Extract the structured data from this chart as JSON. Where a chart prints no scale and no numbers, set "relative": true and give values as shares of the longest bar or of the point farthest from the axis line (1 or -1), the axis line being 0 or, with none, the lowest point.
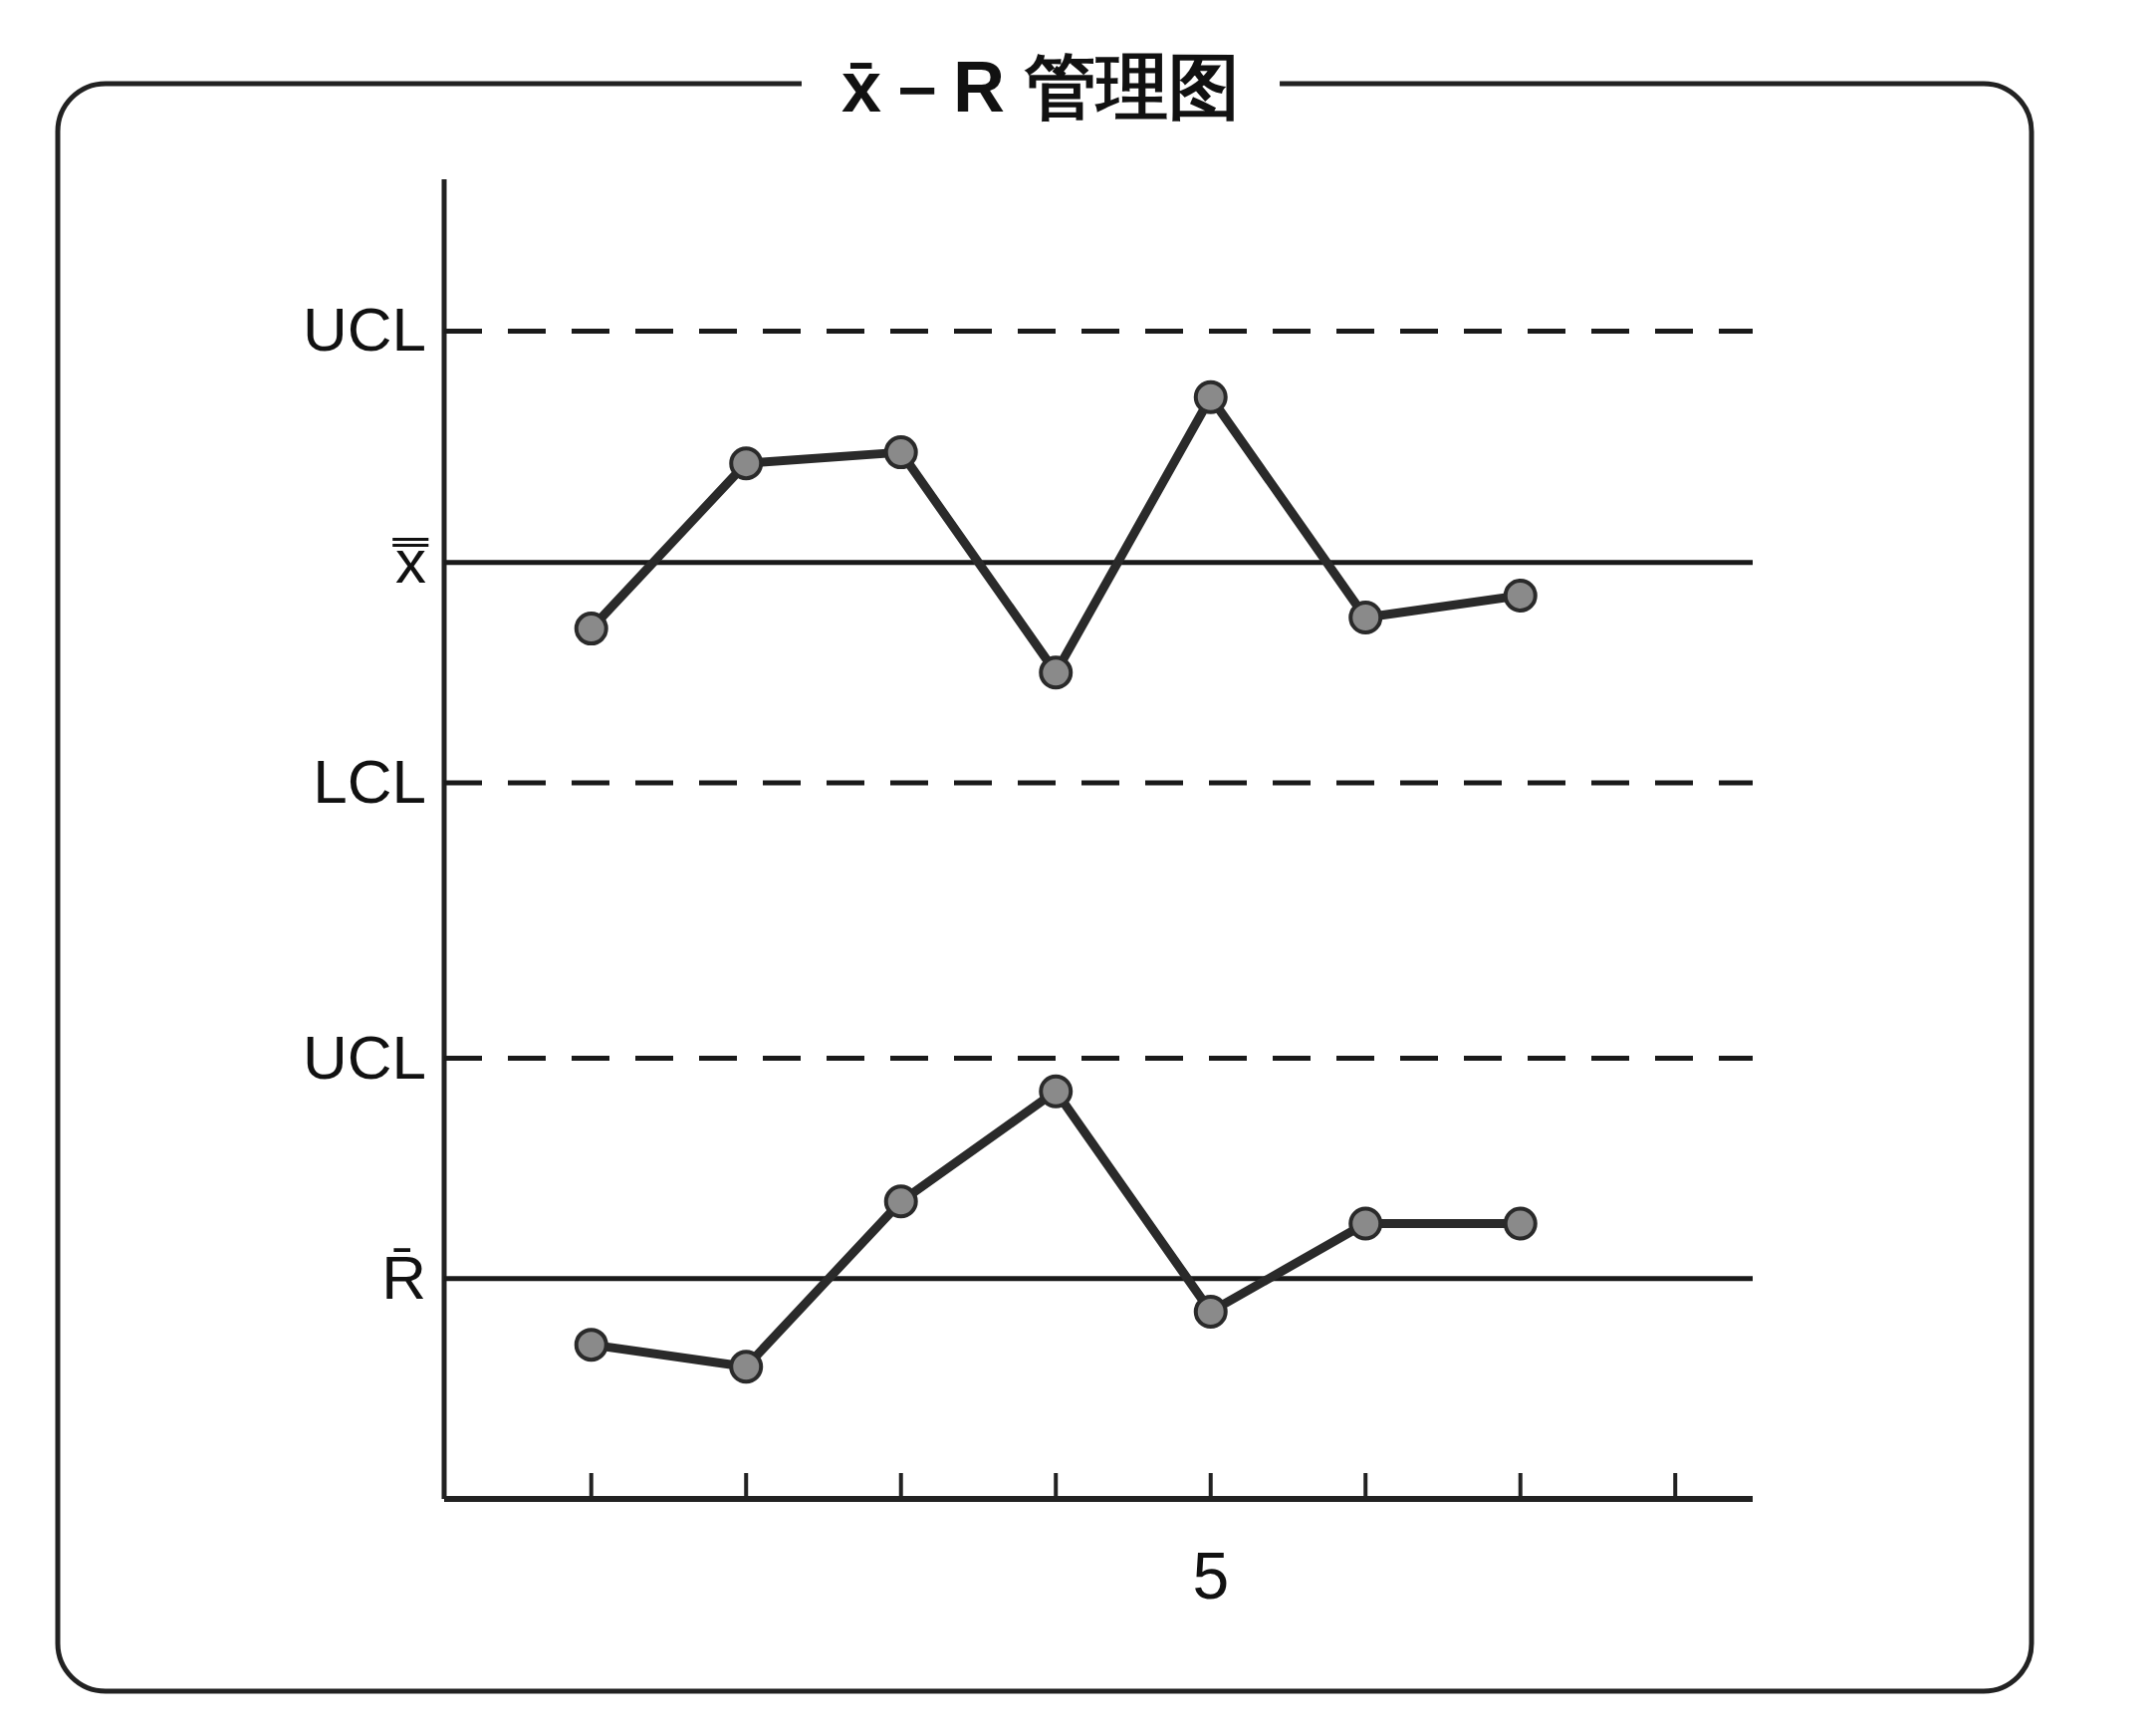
{
  "chart_data": {
    "type": "line",
    "title": "x̄－R 管理图",
    "relative": true,
    "marker": "circle",
    "line_style": "solid",
    "categories": [
      null,
      null,
      null,
      null,
      null,
      null,
      null,
      null
    ],
    "annotations": [
      "5"
    ],
    "series": [
      {
        "color": "#2a2a2a",
        "values": [
          0.79,
          0.94,
          0.95,
          0.75,
          1.0,
          0.8,
          0.82,
          null
        ]
      },
      {
        "color": "#2a2a2a",
        "values": [
          0.14,
          0.12,
          0.27,
          0.37,
          0.17,
          0.25,
          0.25,
          null
        ]
      }
    ],
    "ref_lines": [
      {
        "axis": "y",
        "value": 1.06,
        "label": "UCL",
        "line_style": "dashed",
        "color": "#1a1a1a"
      },
      {
        "axis": "y",
        "value": 0.85,
        "label": "x̿",
        "line_style": "solid",
        "color": "#1a1a1a"
      },
      {
        "axis": "y",
        "value": 0.65,
        "label": "LCL",
        "line_style": "dashed",
        "color": "#1a1a1a"
      },
      {
        "axis": "y",
        "value": 0.4,
        "label": "UCL",
        "line_style": "dashed",
        "color": "#1a1a1a"
      },
      {
        "axis": "y",
        "value": 0.2,
        "label": "R̄",
        "line_style": "solid",
        "color": "#1a1a1a"
      }
    ]
  }
}
